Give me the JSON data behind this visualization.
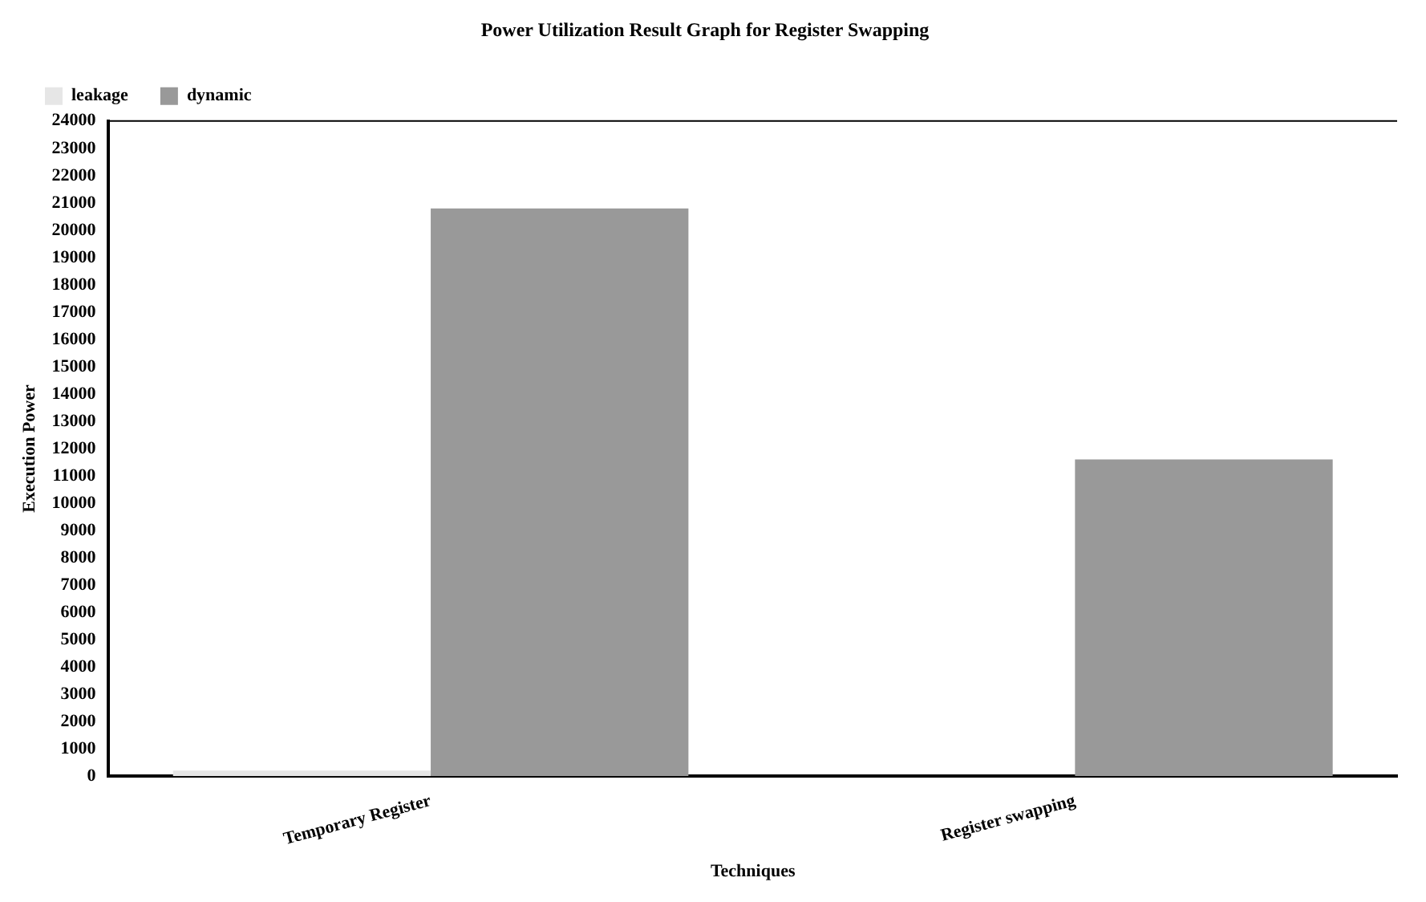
{
  "chart_data": {
    "type": "bar",
    "title": "Power Utilization Result Graph for Register Swapping",
    "xlabel": "Techniques",
    "ylabel": "Execution Power",
    "categories": [
      "Temporary Register",
      "Register swapping"
    ],
    "series": [
      {
        "name": "leakage",
        "color": "#e6e6e6",
        "values": [
          200,
          0
        ]
      },
      {
        "name": "dynamic",
        "color": "#999999",
        "values": [
          20800,
          11600
        ]
      }
    ],
    "ylim": [
      0,
      24000
    ],
    "yticks": [
      0,
      1000,
      2000,
      3000,
      4000,
      5000,
      6000,
      7000,
      8000,
      9000,
      10000,
      11000,
      12000,
      13000,
      14000,
      15000,
      16000,
      17000,
      18000,
      19000,
      20000,
      21000,
      22000,
      23000,
      24000
    ],
    "grid": false,
    "legend": "top left"
  }
}
